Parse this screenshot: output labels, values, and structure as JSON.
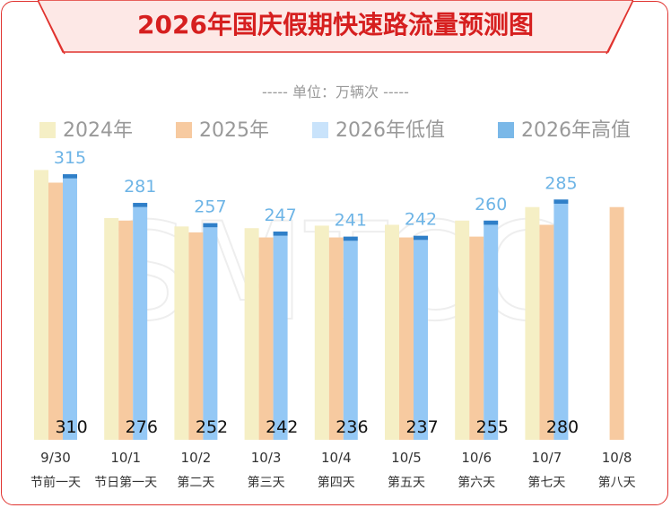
{
  "title": "2026年国庆假期快速路流量预测图",
  "unit_label": "单位：万辆次",
  "watermark": "SMTCC",
  "colors": {
    "frame": "#e0332f",
    "title": "#d61f1f",
    "title_bg": "#fde8e6",
    "s2024": "#f5efc5",
    "s2025": "#f7caa0",
    "low": "#94c8f5",
    "high": "#2f7fc8",
    "label_blue": "#6db4e6",
    "axis_text": "#333333",
    "legend_text": "#999999"
  },
  "chart_data": {
    "type": "bar",
    "title": "2026年国庆假期快速路流量预测图",
    "ylabel": "单位：万辆次",
    "categories": [
      "9/30",
      "10/1",
      "10/2",
      "10/3",
      "10/4",
      "10/5",
      "10/6",
      "10/7",
      "10/8"
    ],
    "subcategories": [
      "节前一天",
      "节日第一天",
      "第二天",
      "第三天",
      "第四天",
      "第五天",
      "第六天",
      "第七天",
      "第八天"
    ],
    "ylim": [
      0,
      330
    ],
    "grid": false,
    "legend_position": "top",
    "series": [
      {
        "name": "2024年",
        "values": [
          320,
          263,
          253,
          251,
          254,
          255,
          260,
          276,
          null
        ]
      },
      {
        "name": "2025年",
        "values": [
          305,
          260,
          246,
          240,
          240,
          240,
          241,
          255,
          276
        ]
      },
      {
        "name": "2026年低值",
        "values": [
          310,
          276,
          252,
          242,
          236,
          237,
          255,
          280,
          null
        ]
      },
      {
        "name": "2026年高值",
        "values": [
          315,
          281,
          257,
          247,
          241,
          242,
          260,
          285,
          null
        ]
      }
    ]
  }
}
